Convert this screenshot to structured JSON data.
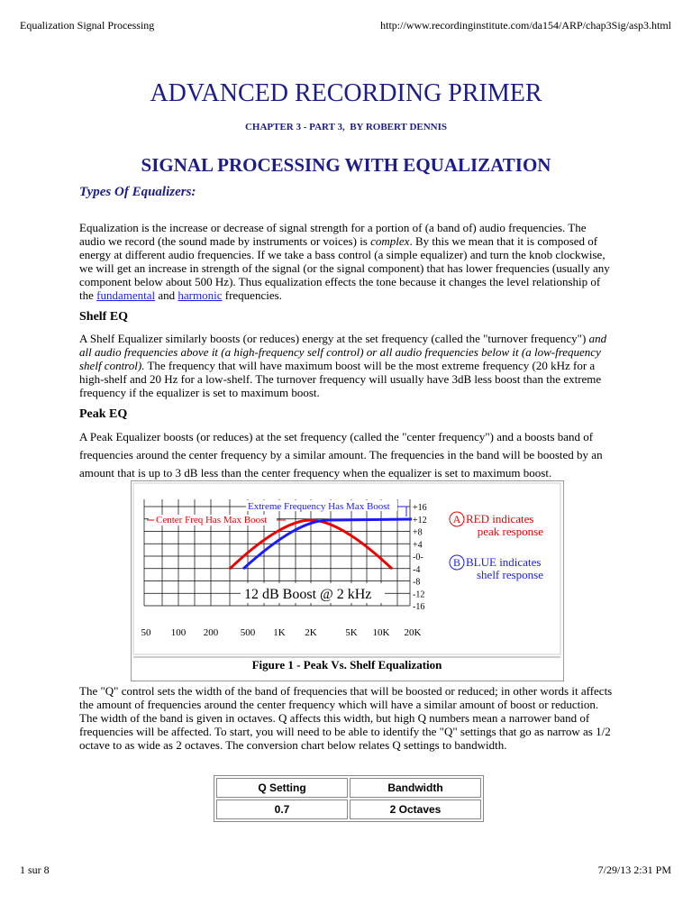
{
  "header": {
    "title": "Equalization Signal Processing",
    "url": "http://www.recordinginstitute.com/da154/ARP/chap3Sig/asp3.html"
  },
  "title": "ADVANCED RECORDING PRIMER",
  "chapter": "CHAPTER 3 - PART 3,  BY ROBERT DENNIS",
  "subtitle": "SIGNAL PROCESSING WITH EQUALIZATION",
  "section_heading": "Types Of Equalizers:",
  "intro": [
    "Equalization is the increase or decrease of signal strength for a portion of (a band of) audio frequencies.  The audio we record (the sound made by instruments or voices) is ",
    "complex",
    ".  By this we mean that it is composed of energy at different audio frequencies.  If we take a bass control (a simple equalizer) and turn the knob clockwise, we will get an increase in strength of the signal (or the signal component) that has lower frequencies (usually any component below about 500 Hz).  Thus equalization effects the tone because it changes the level relationship of the ",
    "fundamental",
    " and ",
    "harmonic",
    " frequencies."
  ],
  "shelf": {
    "heading": "Shelf EQ",
    "text": [
      "A Shelf Equalizer similarly boosts (or reduces) energy at the set frequency (called the \"turnover frequency\") ",
      "and all audio frequencies above it (a high-frequency self control) or all audio frequencies below it (a low-frequency shelf control).",
      "  The frequency that will have maximum boost will be the most extreme frequency (20 kHz for a high-shelf and 20 Hz for a low-shelf.  The turnover frequency will usually have 3dB less boost than the extreme frequency if the equalizer is set to maximum boost."
    ]
  },
  "peak": {
    "heading": "Peak EQ",
    "text": "A Peak Equalizer boosts (or reduces) at the set frequency (called the \"center frequency\") and a boosts band of frequencies around the center frequency by a similar amount.  The frequencies in the band will be boosted by an amount that is up to 3 dB less than the center frequency when the equalizer is set to maximum boost."
  },
  "figure": {
    "db_labels": [
      "+16",
      "+12",
      "+8",
      "+4",
      "-0-",
      "-4",
      "-8",
      "-12",
      "-16"
    ],
    "freq_labels": [
      "50",
      "100",
      "200",
      "500",
      "1K",
      "2K",
      "5K",
      "10K",
      "20K"
    ],
    "blue_annotation": "Extreme Frequency Has Max Boost",
    "red_annotation": "Center Freq Has Max Boost",
    "boost_label": "12 dB Boost @ 2 kHz",
    "legend": [
      {
        "marker": "A",
        "line1": "RED indicates",
        "line2": "peak response"
      },
      {
        "marker": "B",
        "line1": "BLUE indicates",
        "line2": "shelf response"
      }
    ],
    "caption": "Figure 1 - Peak Vs. Shelf Equalization"
  },
  "q_text": "The \"Q\" control sets the width of the band of frequencies that will be boosted or reduced; in other words it affects the amount of frequencies around the center frequency which will have a similar amount of boost or reduction. The width of the band is given in octaves.  Q affects this width, but high Q numbers mean a narrower band of frequencies will be affected.  To start, you will need to be able to identify the \"Q\" settings that go as narrow as 1/2 octave to as wide as 2 octaves.  The conversion chart below relates Q settings to bandwidth.",
  "table": {
    "columns": [
      "Q Setting",
      "Bandwidth"
    ],
    "rows": [
      [
        "0.7",
        "2 Octaves"
      ]
    ]
  },
  "footer": {
    "page": "1 sur 8",
    "datetime": "7/29/13 2:31 PM"
  }
}
